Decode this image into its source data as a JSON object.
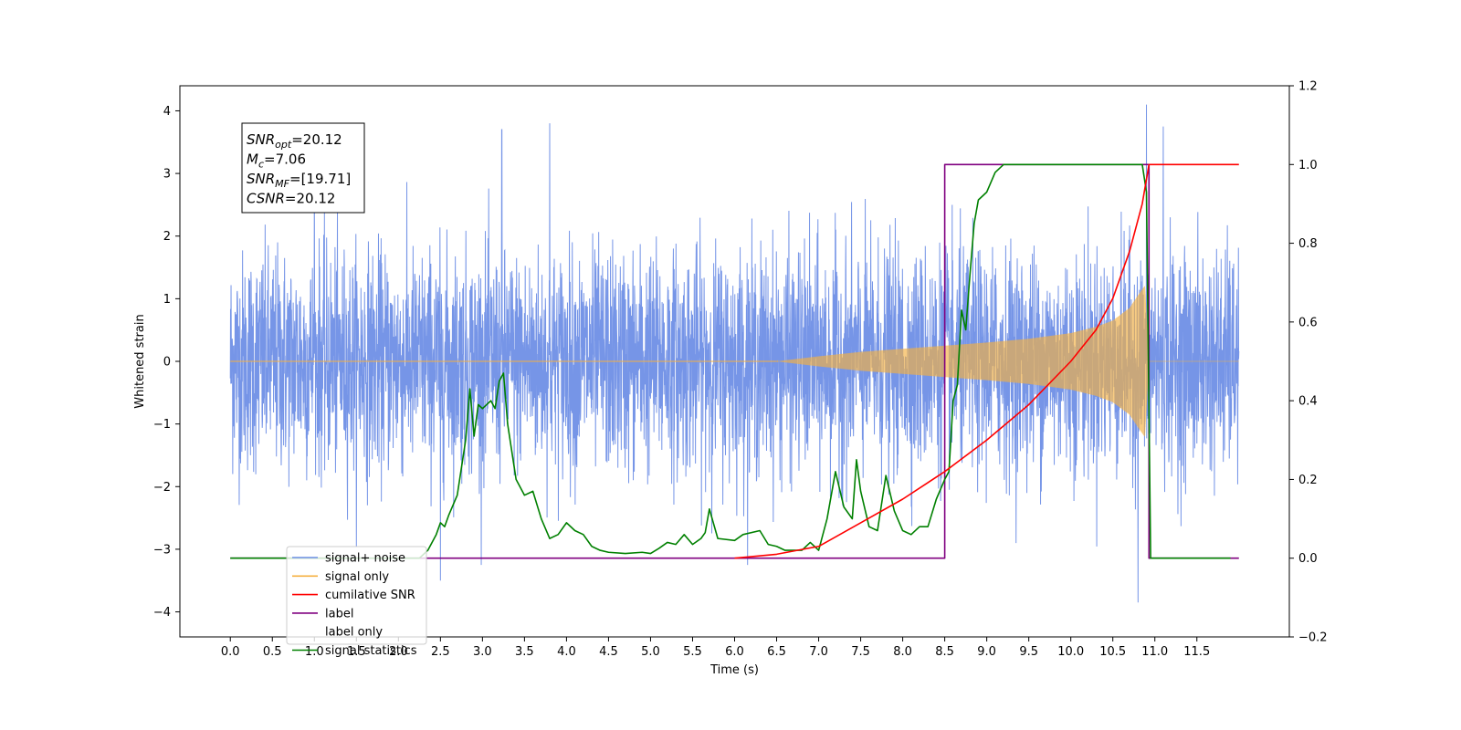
{
  "chart_data": {
    "type": "line",
    "xlabel": "Time (s)",
    "ylabel": "Whitened strain",
    "xlim": [
      -0.6,
      12.6
    ],
    "ylim_left": [
      -4.4,
      4.4
    ],
    "ylim_right": [
      -0.2,
      1.2
    ],
    "x_ticks": [
      0.0,
      0.5,
      1.0,
      1.5,
      2.0,
      2.5,
      3.0,
      3.5,
      4.0,
      4.5,
      5.0,
      5.5,
      6.0,
      6.5,
      7.0,
      7.5,
      8.0,
      8.5,
      9.0,
      9.5,
      10.0,
      10.5,
      11.0,
      11.5
    ],
    "x_tick_labels": [
      "0.0",
      "0.5",
      "1.0",
      "1.5",
      "2.0",
      "2.5",
      "3.0",
      "3.5",
      "4.0",
      "4.5",
      "5.0",
      "5.5",
      "6.0",
      "6.5",
      "7.0",
      "7.5",
      "8.0",
      "8.5",
      "9.0",
      "9.5",
      "10.0",
      "10.5",
      "11.0",
      "11.5"
    ],
    "y_left_ticks": [
      4,
      3,
      2,
      1,
      0,
      -1,
      -2,
      -3,
      -4
    ],
    "y_left_tick_labels": [
      "4",
      "3",
      "2",
      "1",
      "0",
      "−1",
      "−2",
      "−3",
      "−4"
    ],
    "y_right_ticks": [
      1.2,
      1.0,
      0.8,
      0.6,
      0.4,
      0.2,
      0.0,
      -0.2
    ],
    "y_right_tick_labels": [
      "1.2",
      "1.0",
      "0.8",
      "0.6",
      "0.4",
      "0.2",
      "0.0",
      "−0.2"
    ],
    "annotation": {
      "lines": [
        {
          "sym": "SNR",
          "sub": "opt",
          "val": "=20.12"
        },
        {
          "sym": "M",
          "sub": "c",
          "val": "=7.06"
        },
        {
          "sym": "SNR",
          "sub": "MF",
          "val": "=[19.71]"
        },
        {
          "sym": "CSNR",
          "sub": "",
          "val": "=20.12"
        }
      ]
    },
    "legend": {
      "placement": "lower-left",
      "entries": [
        {
          "label": "signal+ noise",
          "color": "#6f8fe6"
        },
        {
          "label": "signal only",
          "color": "#f5b041"
        },
        {
          "label": "cumilative SNR",
          "color": "#ff0000"
        },
        {
          "label": "label",
          "color": "#800080"
        },
        {
          "label": "label only",
          "color": "#ffffff"
        },
        {
          "label": "signal statistics",
          "color": "#008000"
        }
      ]
    },
    "series": [
      {
        "name": "signal+ noise",
        "axis": "left",
        "color": "#6f8fe6",
        "x_range": [
          0.0,
          12.0
        ],
        "noise_std": 0.95,
        "peak_times": [
          1.0,
          3.23,
          3.8,
          10.9,
          11.1
        ],
        "peak_values": [
          3.1,
          3.7,
          3.8,
          4.1,
          3.75
        ],
        "trough_times": [
          2.5,
          10.8
        ],
        "trough_values": [
          -3.5,
          -3.85
        ]
      },
      {
        "name": "signal only",
        "axis": "left",
        "color": "#f5b041",
        "chirp_start": 6.5,
        "chirp_end": 10.93,
        "envelope": {
          "x": [
            6.5,
            7.0,
            7.5,
            8.0,
            8.5,
            9.0,
            9.5,
            10.0,
            10.3,
            10.5,
            10.7,
            10.8,
            10.88,
            10.93
          ],
          "y": [
            0.0,
            0.08,
            0.15,
            0.2,
            0.25,
            0.3,
            0.36,
            0.45,
            0.55,
            0.65,
            0.85,
            1.05,
            1.2,
            0.0
          ]
        }
      },
      {
        "name": "cumilative SNR",
        "axis": "right",
        "color": "#ff0000",
        "x": [
          6.0,
          6.5,
          7.0,
          7.5,
          8.0,
          8.5,
          9.0,
          9.5,
          10.0,
          10.3,
          10.5,
          10.7,
          10.85,
          10.93,
          11.0,
          12.0
        ],
        "y": [
          0.0,
          0.01,
          0.03,
          0.09,
          0.15,
          0.22,
          0.3,
          0.39,
          0.5,
          0.58,
          0.66,
          0.78,
          0.9,
          1.0,
          1.0,
          1.0
        ]
      },
      {
        "name": "label",
        "axis": "right",
        "color": "#800080",
        "x": [
          0.0,
          8.5,
          8.5,
          10.93,
          10.93,
          12.0
        ],
        "y": [
          0.0,
          0.0,
          1.0,
          1.0,
          0.0,
          0.0
        ]
      },
      {
        "name": "signal statistics",
        "axis": "right",
        "color": "#008000",
        "x": [
          0.0,
          2.25,
          2.35,
          2.45,
          2.5,
          2.55,
          2.6,
          2.7,
          2.8,
          2.85,
          2.9,
          2.95,
          3.0,
          3.05,
          3.1,
          3.15,
          3.2,
          3.25,
          3.3,
          3.4,
          3.5,
          3.6,
          3.7,
          3.8,
          3.9,
          4.0,
          4.1,
          4.2,
          4.3,
          4.4,
          4.5,
          4.7,
          4.9,
          5.0,
          5.1,
          5.2,
          5.3,
          5.4,
          5.5,
          5.6,
          5.65,
          5.7,
          5.8,
          6.0,
          6.1,
          6.3,
          6.4,
          6.5,
          6.6,
          6.8,
          6.9,
          7.0,
          7.1,
          7.2,
          7.3,
          7.4,
          7.45,
          7.5,
          7.6,
          7.7,
          7.75,
          7.8,
          7.9,
          8.0,
          8.1,
          8.2,
          8.3,
          8.4,
          8.5,
          8.55,
          8.6,
          8.65,
          8.7,
          8.75,
          8.8,
          8.85,
          8.9,
          9.0,
          9.1,
          9.2,
          9.3,
          9.6,
          10.0,
          10.5,
          10.85,
          10.9,
          10.95,
          11.0,
          11.5,
          11.9
        ],
        "y": [
          0.0,
          0.0,
          0.02,
          0.06,
          0.09,
          0.08,
          0.11,
          0.16,
          0.3,
          0.43,
          0.31,
          0.39,
          0.38,
          0.39,
          0.4,
          0.38,
          0.45,
          0.47,
          0.34,
          0.2,
          0.16,
          0.17,
          0.1,
          0.05,
          0.06,
          0.09,
          0.07,
          0.06,
          0.03,
          0.02,
          0.015,
          0.012,
          0.015,
          0.012,
          0.025,
          0.04,
          0.035,
          0.06,
          0.035,
          0.05,
          0.065,
          0.125,
          0.05,
          0.045,
          0.06,
          0.07,
          0.035,
          0.03,
          0.02,
          0.02,
          0.04,
          0.02,
          0.1,
          0.22,
          0.13,
          0.1,
          0.25,
          0.17,
          0.08,
          0.07,
          0.14,
          0.21,
          0.12,
          0.07,
          0.06,
          0.08,
          0.08,
          0.15,
          0.2,
          0.22,
          0.4,
          0.44,
          0.63,
          0.58,
          0.72,
          0.85,
          0.91,
          0.93,
          0.98,
          1.0,
          1.0,
          1.0,
          1.0,
          1.0,
          1.0,
          0.93,
          0.0,
          0.0,
          0.0,
          0.0
        ]
      }
    ]
  }
}
